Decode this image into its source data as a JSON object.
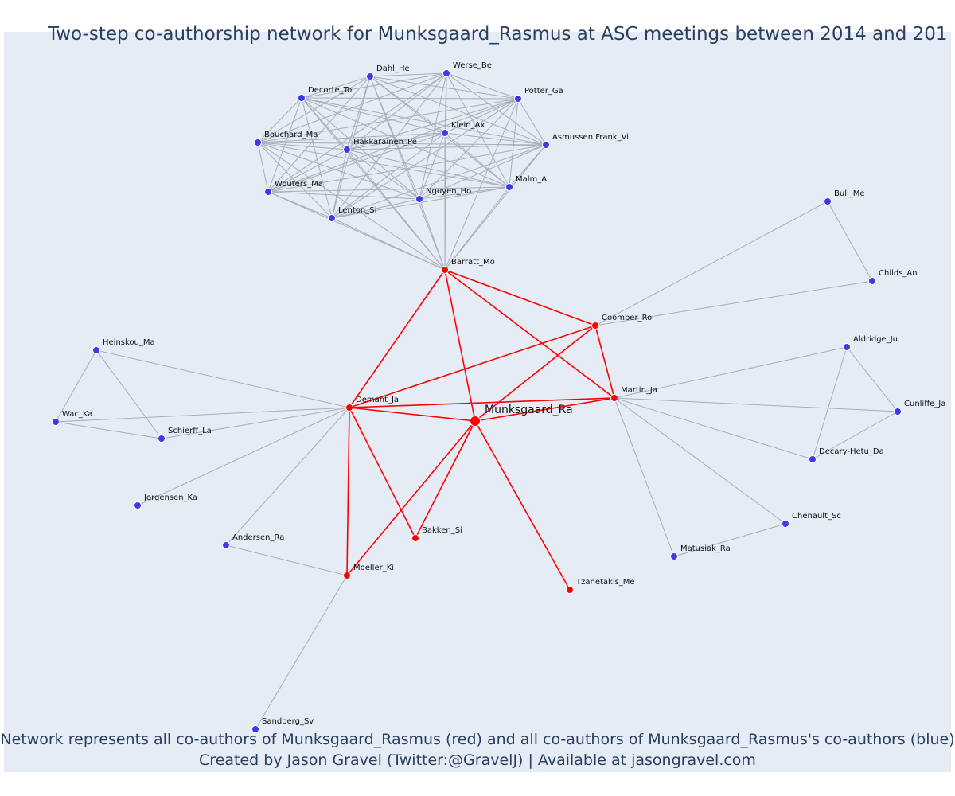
{
  "title": "Two-step co-authorship network for Munksgaard_Rasmus at ASC meetings between 2014 and 201",
  "footer": {
    "line1": "Network represents all co-authors of Munksgaard_Rasmus (red) and all co-authors of Munksgaard_Rasmus's co-authors (blue)",
    "line2": "Created by Jason Gravel (Twitter:@GravelJ) | Available at jasongravel.com"
  },
  "colors": {
    "red": "#ff0000",
    "blue": "#3b3be8",
    "grey_edge": "#a8adb8",
    "background": "#e5ecf6",
    "text": "#2a3f5f"
  },
  "nodes": [
    {
      "id": "Munksgaard_Ra",
      "group": "focal"
    },
    {
      "id": "Barratt_Mo",
      "group": "red"
    },
    {
      "id": "Coomber_Ro",
      "group": "red"
    },
    {
      "id": "Martin_Ja",
      "group": "red"
    },
    {
      "id": "Demant_Ja",
      "group": "red"
    },
    {
      "id": "Bakken_Si",
      "group": "red"
    },
    {
      "id": "Moeller_Ki",
      "group": "red"
    },
    {
      "id": "Tzanetakis_Me",
      "group": "red"
    },
    {
      "id": "Dahl_He",
      "group": "blue"
    },
    {
      "id": "Werse_Be",
      "group": "blue"
    },
    {
      "id": "Decorte_To",
      "group": "blue"
    },
    {
      "id": "Potter_Ga",
      "group": "blue"
    },
    {
      "id": "Klein_Ax",
      "group": "blue"
    },
    {
      "id": "Bouchard_Ma",
      "group": "blue"
    },
    {
      "id": "Hakkarainen_Pe",
      "group": "blue"
    },
    {
      "id": "Asmussen Frank_Vi",
      "group": "blue"
    },
    {
      "id": "Malm_Ai",
      "group": "blue"
    },
    {
      "id": "Wouters_Ma",
      "group": "blue"
    },
    {
      "id": "Nguyen_Ho",
      "group": "blue"
    },
    {
      "id": "Lenton_Si",
      "group": "blue"
    },
    {
      "id": "Bull_Me",
      "group": "blue"
    },
    {
      "id": "Childs_An",
      "group": "blue"
    },
    {
      "id": "Heinskou_Ma",
      "group": "blue"
    },
    {
      "id": "Wac_Ka",
      "group": "blue"
    },
    {
      "id": "Schierff_La",
      "group": "blue"
    },
    {
      "id": "Jorgensen_Ka",
      "group": "blue"
    },
    {
      "id": "Andersen_Ra",
      "group": "blue"
    },
    {
      "id": "Sandberg_Sv",
      "group": "blue"
    },
    {
      "id": "Aldridge_Ju",
      "group": "blue"
    },
    {
      "id": "Cunliffe_Ja",
      "group": "blue"
    },
    {
      "id": "Decary-Hetu_Da",
      "group": "blue"
    },
    {
      "id": "Chenault_Sc",
      "group": "blue"
    },
    {
      "id": "Matusiak_Ra",
      "group": "blue"
    }
  ],
  "red_edges": [
    [
      "Munksgaard_Ra",
      "Barratt_Mo"
    ],
    [
      "Munksgaard_Ra",
      "Coomber_Ro"
    ],
    [
      "Munksgaard_Ra",
      "Martin_Ja"
    ],
    [
      "Munksgaard_Ra",
      "Demant_Ja"
    ],
    [
      "Munksgaard_Ra",
      "Bakken_Si"
    ],
    [
      "Munksgaard_Ra",
      "Moeller_Ki"
    ],
    [
      "Munksgaard_Ra",
      "Tzanetakis_Me"
    ],
    [
      "Barratt_Mo",
      "Coomber_Ro"
    ],
    [
      "Barratt_Mo",
      "Martin_Ja"
    ],
    [
      "Barratt_Mo",
      "Demant_Ja"
    ],
    [
      "Coomber_Ro",
      "Martin_Ja"
    ],
    [
      "Coomber_Ro",
      "Demant_Ja"
    ],
    [
      "Martin_Ja",
      "Demant_Ja"
    ],
    [
      "Demant_Ja",
      "Bakken_Si"
    ],
    [
      "Demant_Ja",
      "Moeller_Ki"
    ]
  ],
  "grey_edges": [
    [
      "Coomber_Ro",
      "Bull_Me"
    ],
    [
      "Coomber_Ro",
      "Childs_An"
    ],
    [
      "Bull_Me",
      "Childs_An"
    ],
    [
      "Demant_Ja",
      "Heinskou_Ma"
    ],
    [
      "Demant_Ja",
      "Wac_Ka"
    ],
    [
      "Demant_Ja",
      "Schierff_La"
    ],
    [
      "Demant_Ja",
      "Jorgensen_Ka"
    ],
    [
      "Demant_Ja",
      "Andersen_Ra"
    ],
    [
      "Heinskou_Ma",
      "Wac_Ka"
    ],
    [
      "Heinskou_Ma",
      "Schierff_La"
    ],
    [
      "Wac_Ka",
      "Schierff_La"
    ],
    [
      "Moeller_Ki",
      "Andersen_Ra"
    ],
    [
      "Moeller_Ki",
      "Sandberg_Sv"
    ],
    [
      "Martin_Ja",
      "Aldridge_Ju"
    ],
    [
      "Martin_Ja",
      "Cunliffe_Ja"
    ],
    [
      "Martin_Ja",
      "Decary-Hetu_Da"
    ],
    [
      "Martin_Ja",
      "Chenault_Sc"
    ],
    [
      "Martin_Ja",
      "Matusiak_Ra"
    ],
    [
      "Aldridge_Ju",
      "Cunliffe_Ja"
    ],
    [
      "Aldridge_Ju",
      "Decary-Hetu_Da"
    ],
    [
      "Cunliffe_Ja",
      "Decary-Hetu_Da"
    ],
    [
      "Chenault_Sc",
      "Matusiak_Ra"
    ]
  ],
  "clique": [
    "Barratt_Mo",
    "Dahl_He",
    "Werse_Be",
    "Decorte_To",
    "Potter_Ga",
    "Klein_Ax",
    "Bouchard_Ma",
    "Hakkarainen_Pe",
    "Asmussen Frank_Vi",
    "Malm_Ai",
    "Wouters_Ma",
    "Nguyen_Ho",
    "Lenton_Si"
  ]
}
